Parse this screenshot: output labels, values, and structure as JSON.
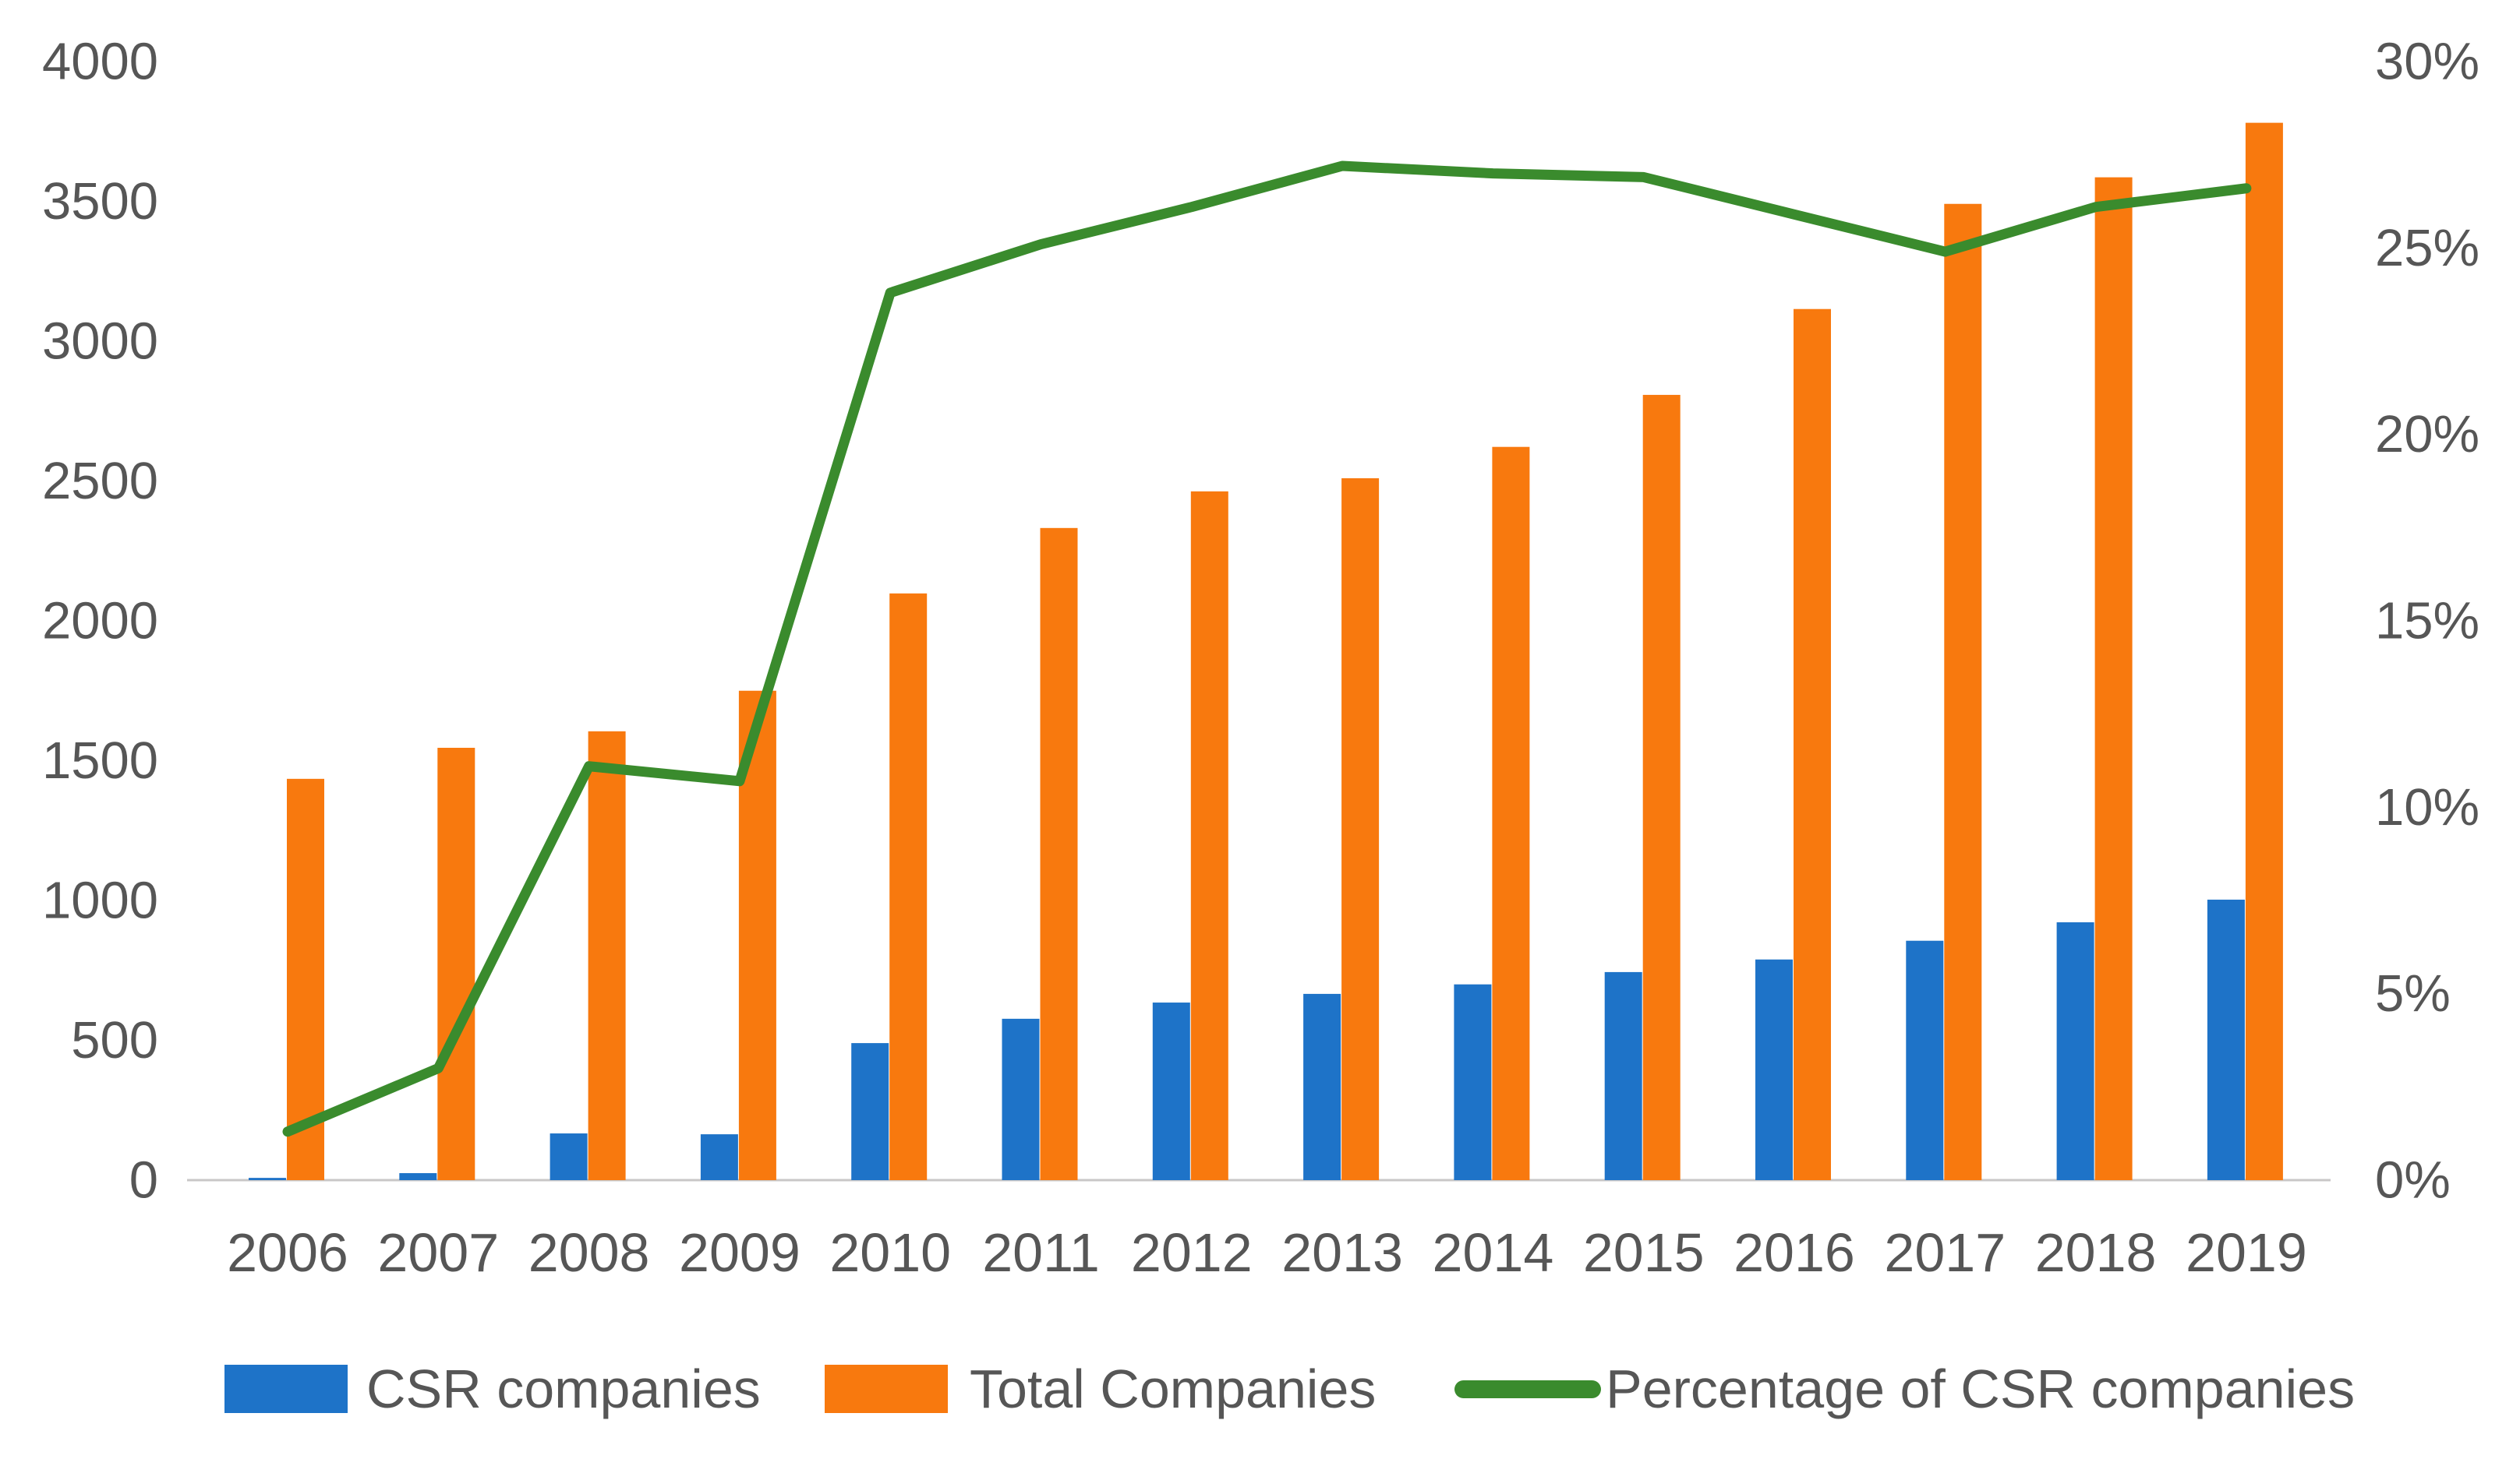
{
  "chart_data": {
    "type": "combo-bar-line",
    "title": "",
    "categories": [
      "2006",
      "2007",
      "2008",
      "2009",
      "2010",
      "2011",
      "2012",
      "2013",
      "2014",
      "2015",
      "2016",
      "2017",
      "2018",
      "2019"
    ],
    "series": [
      {
        "name": "CSR companies",
        "chart_type": "bar",
        "axis": "left",
        "color": "#1e73c8",
        "values": [
          8,
          25,
          167,
          164,
          490,
          577,
          635,
          666,
          700,
          744,
          789,
          856,
          922,
          1003
        ]
      },
      {
        "name": "Total Companies",
        "chart_type": "bar",
        "axis": "left",
        "color": "#f8790e",
        "values": [
          1435,
          1546,
          1605,
          1750,
          2098,
          2332,
          2463,
          2510,
          2622,
          2808,
          3115,
          3491,
          3586,
          3781
        ]
      },
      {
        "name": "Percentage of CSR companies",
        "chart_type": "line",
        "axis": "right",
        "color": "#3a8b2d",
        "values": [
          1.3,
          3.0,
          11.1,
          10.7,
          23.8,
          25.1,
          26.1,
          27.2,
          27.0,
          26.9,
          25.9,
          24.9,
          26.1,
          26.6
        ]
      }
    ],
    "left_axis": {
      "min": 0,
      "max": 4000,
      "step": 500,
      "tick_labels": [
        "4000",
        "3500",
        "3000",
        "2500",
        "2000",
        "1500",
        "1000",
        "500",
        "0"
      ]
    },
    "right_axis": {
      "min": 0,
      "max": 30,
      "step": 5,
      "tick_labels": [
        "30%",
        "25%",
        "20%",
        "15%",
        "10%",
        "5%",
        "0%"
      ]
    },
    "grid": false,
    "legend_position": "bottom",
    "text_color": "#565656",
    "baseline_color": "#c9c7c7"
  }
}
